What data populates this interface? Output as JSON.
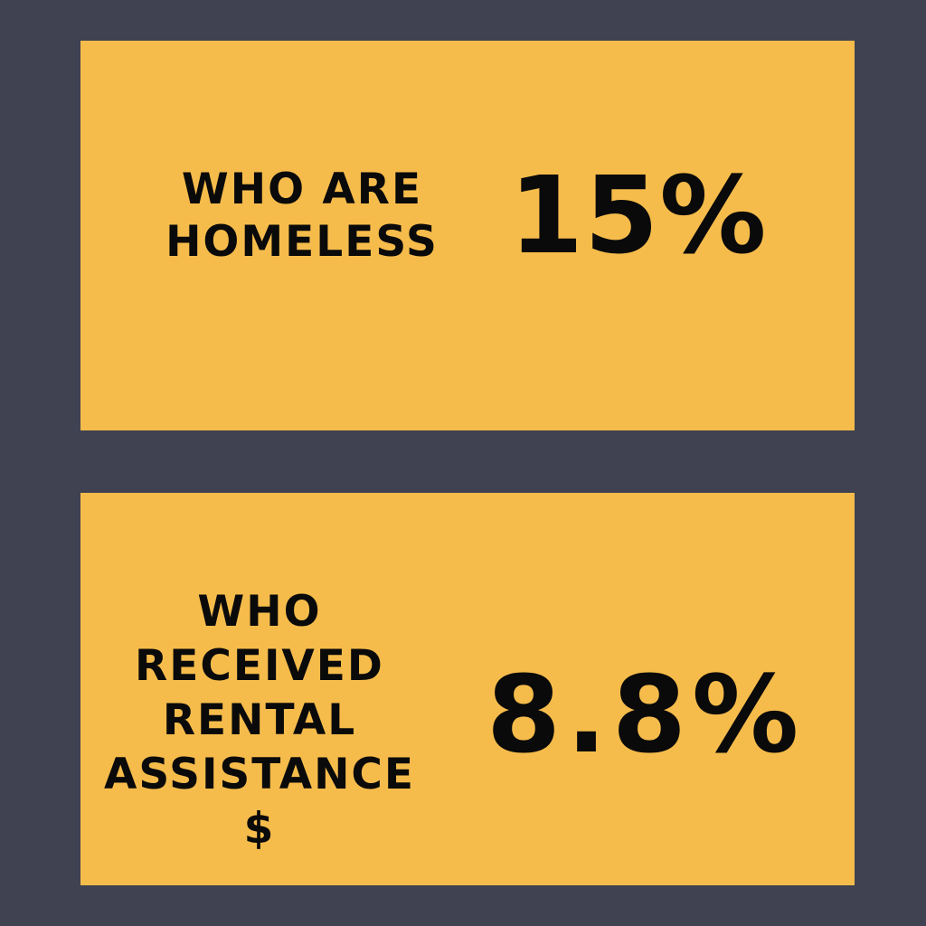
{
  "colors": {
    "background": "#404251",
    "card": "#F6BC4B",
    "text": "#0a0a0a"
  },
  "stats": [
    {
      "label_lines": [
        "WHO ARE",
        "HOMELESS"
      ],
      "value": "15%"
    },
    {
      "label_lines": [
        "WHO",
        "RECEIVED",
        "RENTAL",
        "ASSISTANCE",
        "$"
      ],
      "value": "8.8%"
    }
  ]
}
